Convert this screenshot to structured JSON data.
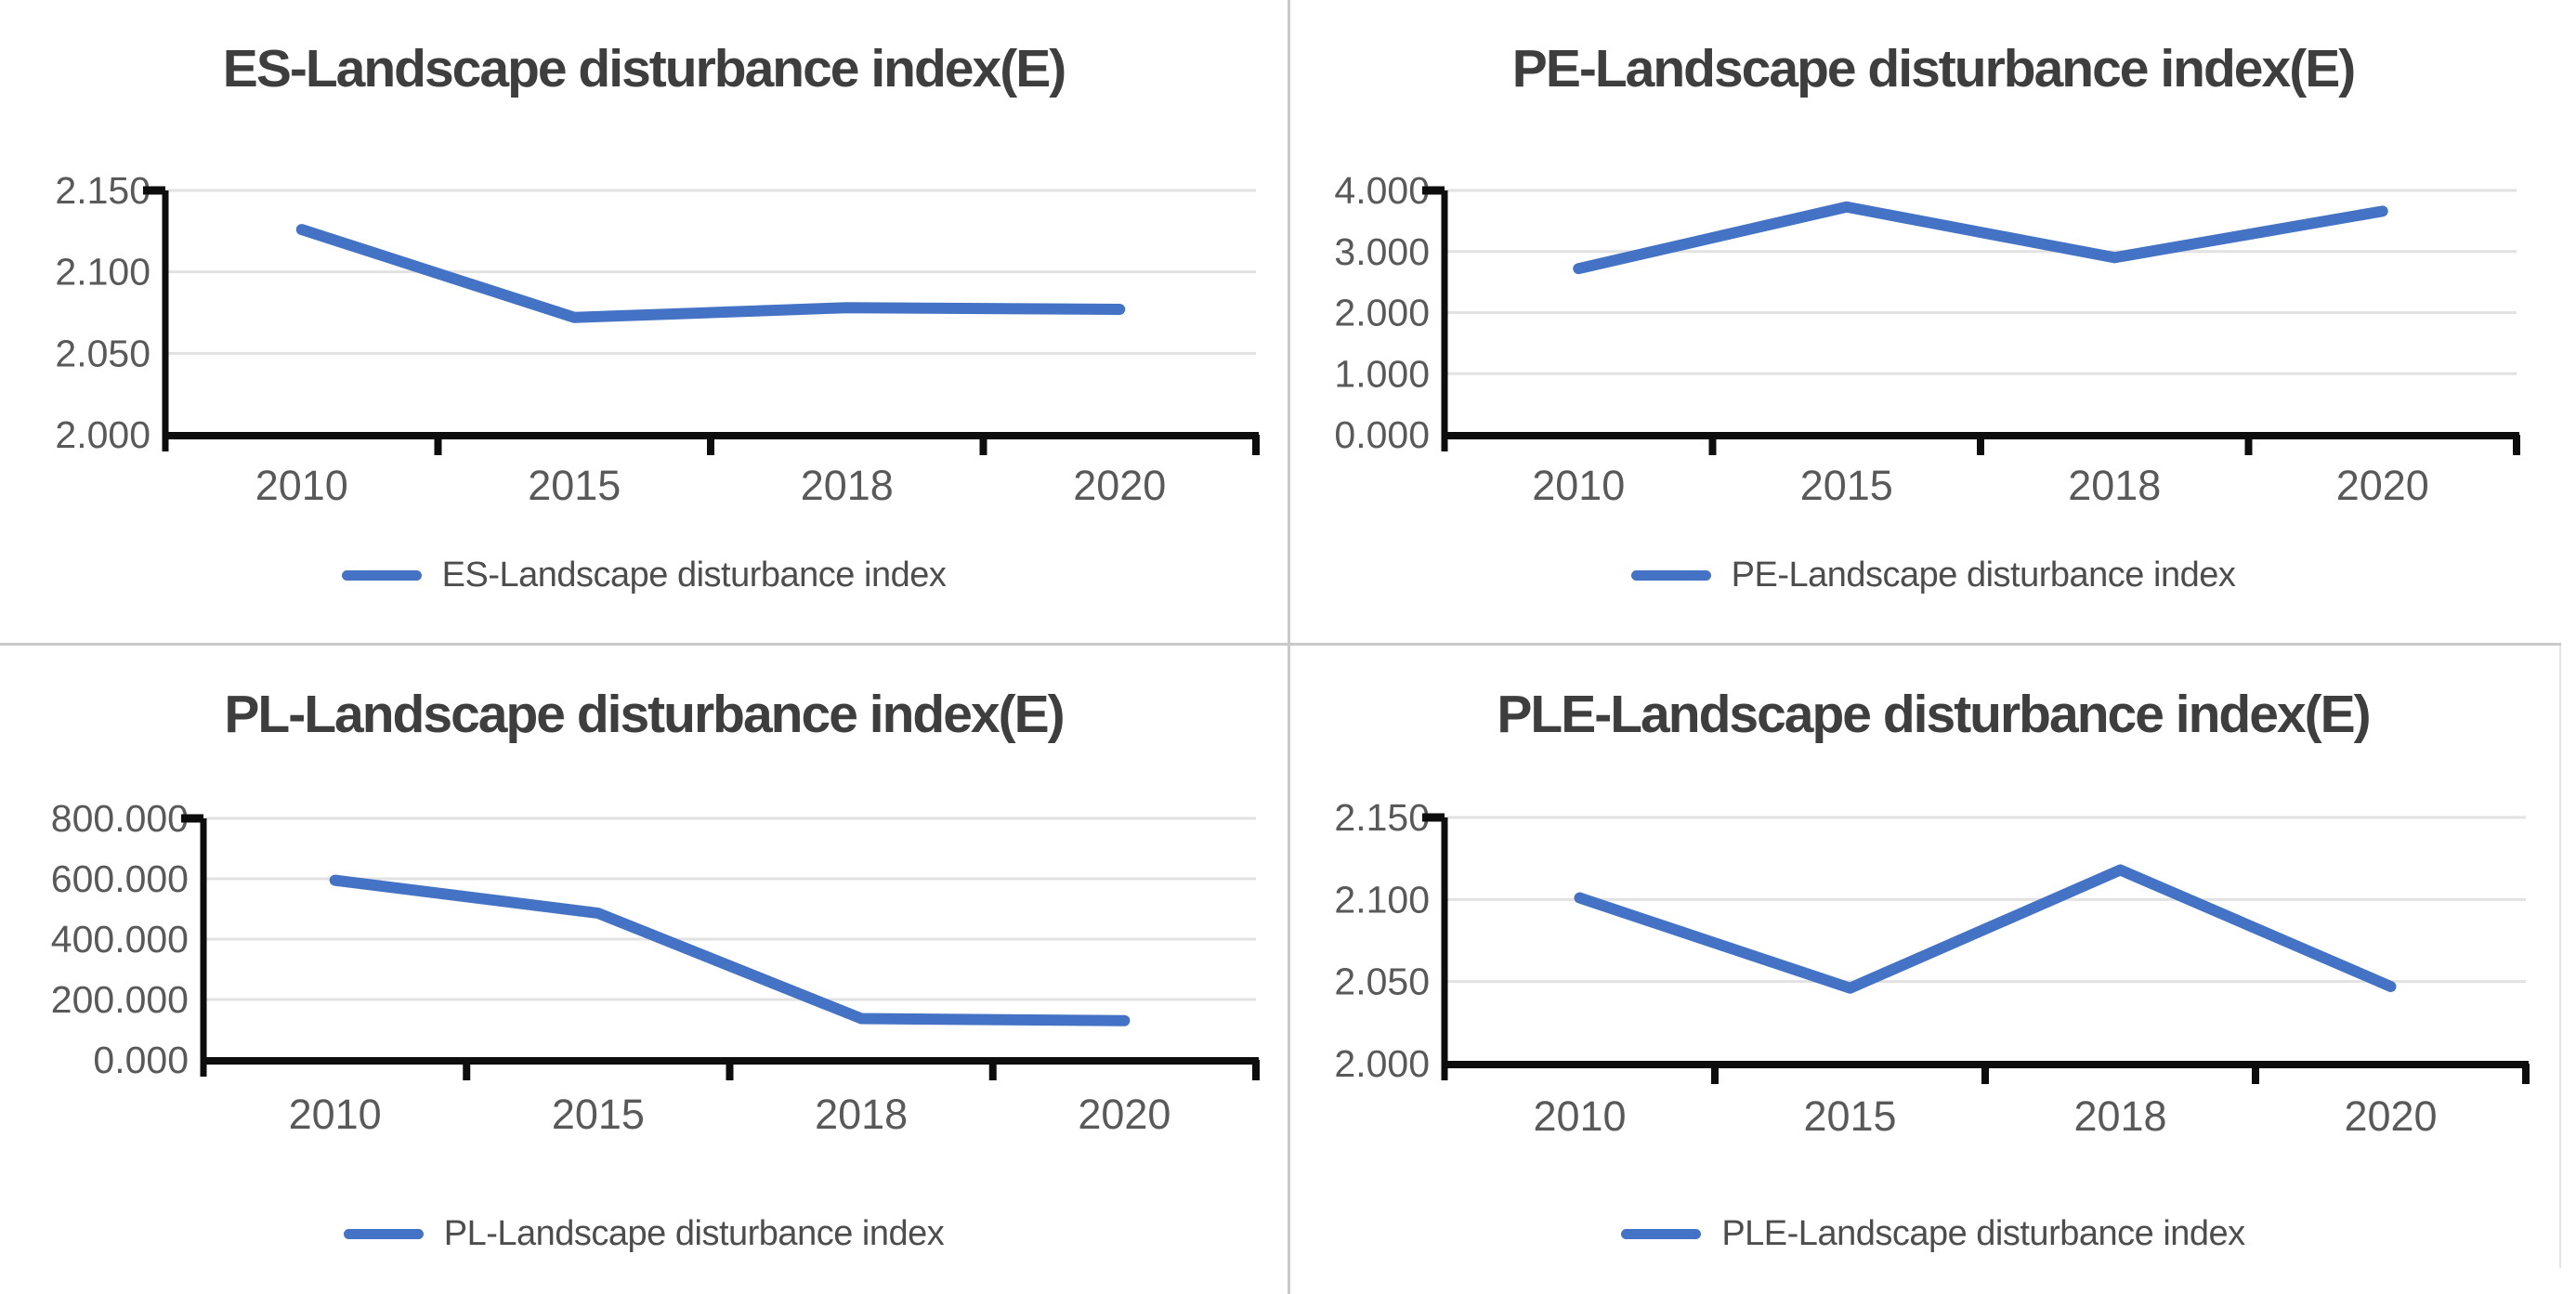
{
  "page": {
    "background": "#ffffff",
    "accent_line_color": "#4472c4",
    "gridline_color": "#e2e2e2",
    "axis_color": "#0d0d0d",
    "title_color": "#3e3e3e",
    "tick_label_color": "#595959",
    "legend_text_color": "#4d4d4d",
    "divider_color": "#c9c9c9"
  },
  "chart_data": [
    {
      "type": "line",
      "title": "ES-Landscape disturbance index(E)",
      "categories": [
        "2010",
        "2015",
        "2018",
        "2020"
      ],
      "series": [
        {
          "name": "ES-Landscape disturbance index",
          "values": [
            2.126,
            2.072,
            2.078,
            2.077
          ]
        }
      ],
      "xlabel": "",
      "ylabel": "",
      "ylim": [
        2.0,
        2.15
      ],
      "yticks": [
        "2.150",
        "2.100",
        "2.050",
        "2.000"
      ],
      "grid": true,
      "legend_position": "bottom",
      "legend_label": "ES-Landscape disturbance index"
    },
    {
      "type": "line",
      "title": "PE-Landscape disturbance index(E)",
      "categories": [
        "2010",
        "2015",
        "2018",
        "2020"
      ],
      "series": [
        {
          "name": "PE-Landscape disturbance index",
          "values": [
            2.72,
            3.73,
            2.9,
            3.66
          ]
        }
      ],
      "xlabel": "",
      "ylabel": "",
      "ylim": [
        0.0,
        4.0
      ],
      "yticks": [
        "4.000",
        "3.000",
        "2.000",
        "1.000",
        "0.000"
      ],
      "grid": true,
      "legend_position": "bottom",
      "legend_label": "PE-Landscape disturbance index"
    },
    {
      "type": "line",
      "title": "PL-Landscape disturbance index(E)",
      "categories": [
        "2010",
        "2015",
        "2018",
        "2020"
      ],
      "series": [
        {
          "name": "PL-Landscape disturbance index",
          "values": [
            595,
            486,
            137,
            130
          ]
        }
      ],
      "xlabel": "",
      "ylabel": "",
      "ylim": [
        0.0,
        800.0
      ],
      "yticks": [
        "800.000",
        "600.000",
        "400.000",
        "200.000",
        "0.000"
      ],
      "grid": true,
      "legend_position": "bottom",
      "legend_label": "PL-Landscape disturbance index"
    },
    {
      "type": "line",
      "title": "PLE-Landscape disturbance index(E)",
      "categories": [
        "2010",
        "2015",
        "2018",
        "2020"
      ],
      "series": [
        {
          "name": "PLE-Landscape disturbance index",
          "values": [
            2.101,
            2.046,
            2.118,
            2.047
          ]
        }
      ],
      "xlabel": "",
      "ylabel": "",
      "ylim": [
        2.0,
        2.15
      ],
      "yticks": [
        "2.150",
        "2.100",
        "2.050",
        "2.000"
      ],
      "grid": true,
      "legend_position": "bottom",
      "legend_label": "PLE-Landscape disturbance index"
    }
  ]
}
